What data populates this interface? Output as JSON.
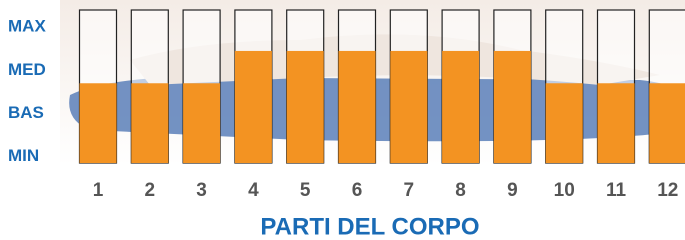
{
  "chart_data": {
    "type": "bar",
    "x_label": "PARTI DEL CORPO",
    "categories": [
      "1",
      "2",
      "3",
      "4",
      "5",
      "6",
      "7",
      "8",
      "9",
      "10",
      "11",
      "12"
    ],
    "values": [
      1.7,
      1.7,
      1.7,
      2.45,
      2.45,
      2.45,
      2.45,
      2.45,
      2.45,
      1.7,
      1.7,
      1.7
    ],
    "color": "#f39322",
    "ylim": [
      -0.15,
      3.4
    ],
    "yticks": [
      {
        "value": 0,
        "label": "MIN"
      },
      {
        "value": 1,
        "label": "BAS"
      },
      {
        "value": 2,
        "label": "MED"
      },
      {
        "value": 3,
        "label": "MAX"
      }
    ],
    "grid": false
  }
}
